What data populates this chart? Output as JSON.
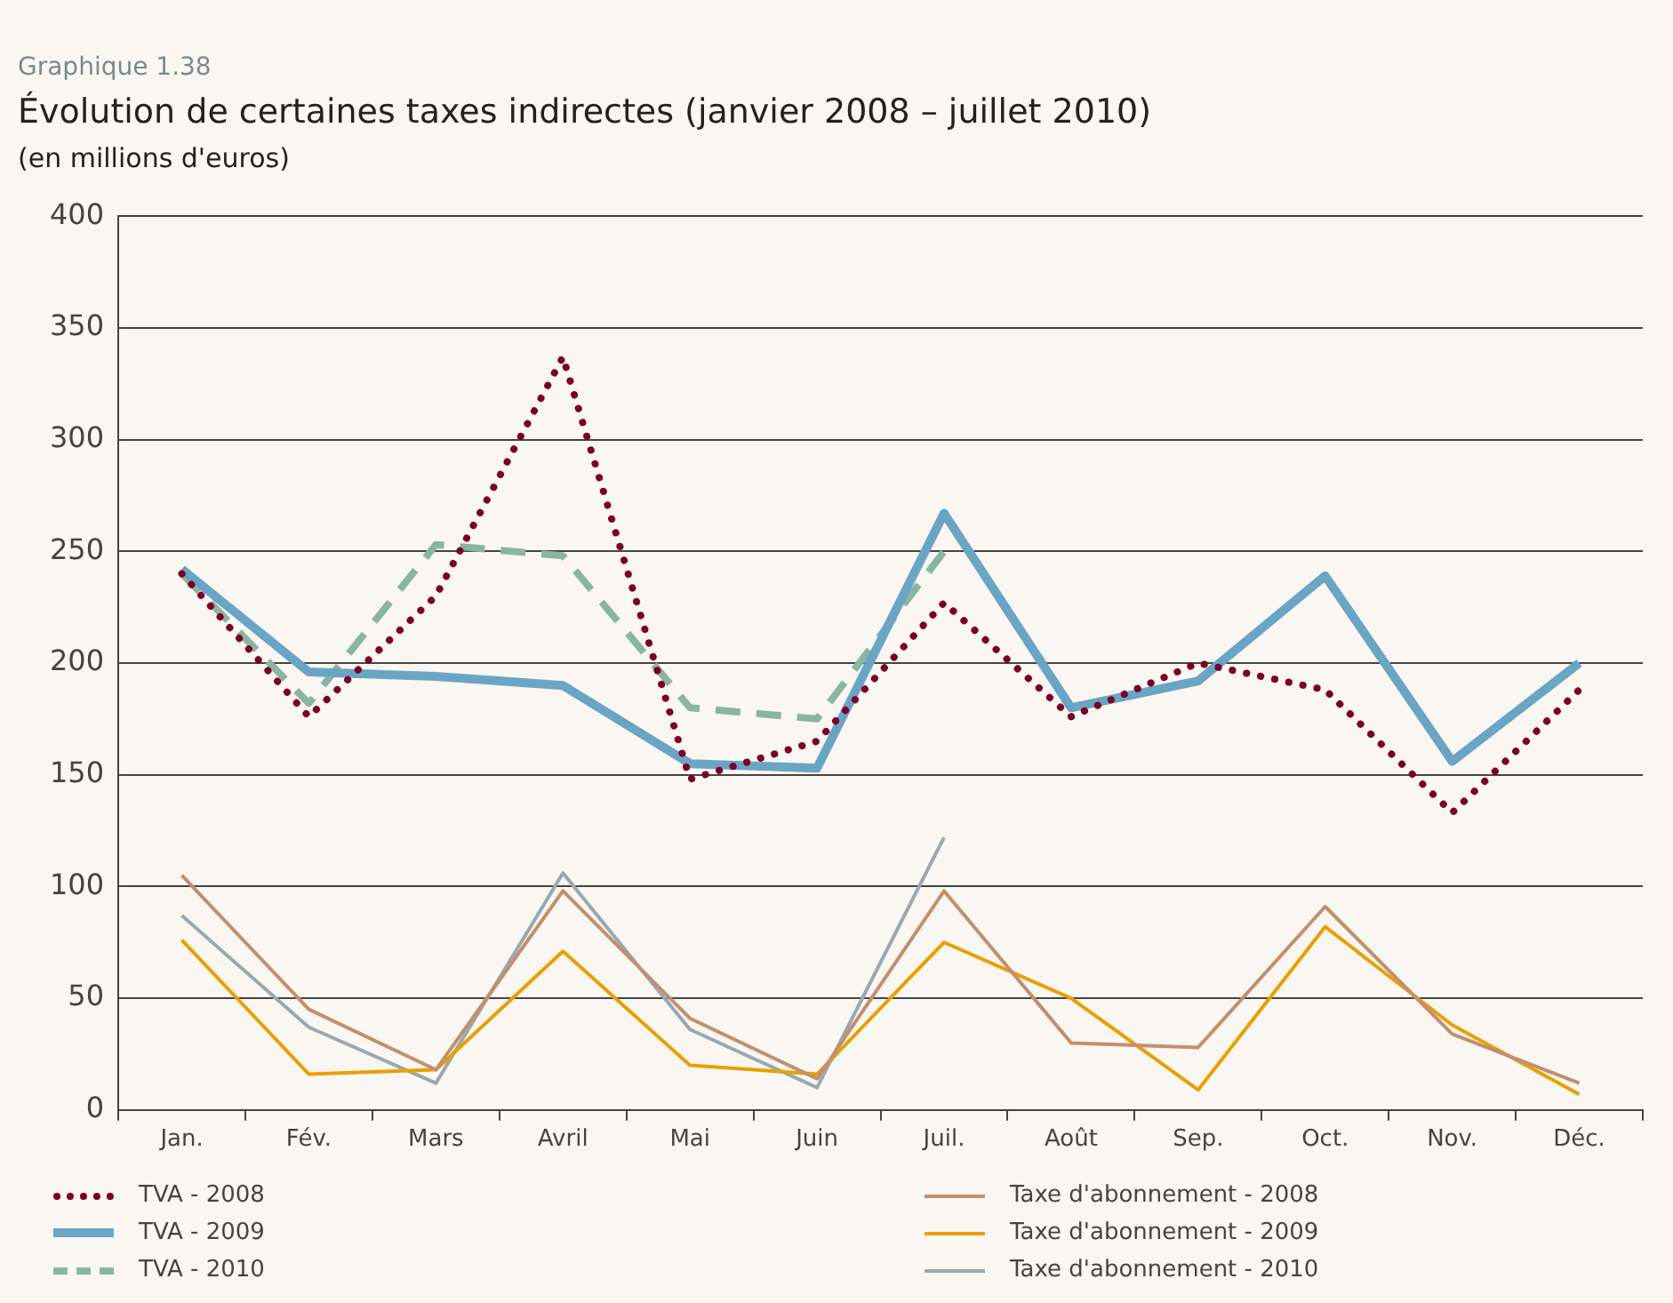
{
  "chart_data": {
    "type": "line",
    "annotations": [
      "Graphique 1.38"
    ],
    "title": "Évolution de certaines taxes indirectes (janvier 2008 – juillet 2010)",
    "subtitle": "(en millions d'euros)",
    "categories": [
      "Jan.",
      "Fév.",
      "Mars",
      "Avril",
      "Mai",
      "Juin",
      "Juil.",
      "Août",
      "Sep.",
      "Oct.",
      "Nov.",
      "Déc."
    ],
    "ylim": [
      0,
      400
    ],
    "yticks": [
      0,
      50,
      100,
      150,
      200,
      250,
      300,
      350,
      400
    ],
    "grid": "y",
    "legend": "bottom",
    "marker": "none",
    "series": [
      {
        "name": "TVA - 2008",
        "color": "#7a0026",
        "line_style": "dotted",
        "values": [
          240,
          176,
          230,
          337,
          148,
          165,
          227,
          176,
          200,
          188,
          133,
          188
        ]
      },
      {
        "name": "TVA - 2009",
        "color": "#6aa5c4",
        "line_style": "solid",
        "values": [
          242,
          196,
          194,
          190,
          155,
          153,
          267,
          180,
          192,
          239,
          156,
          200
        ]
      },
      {
        "name": "TVA - 2010",
        "color": "#8ab5a0",
        "line_style": "dashed",
        "values": [
          240,
          182,
          253,
          248,
          180,
          175,
          250,
          null,
          null,
          null,
          null,
          null
        ]
      },
      {
        "name": "Taxe d'abonnement - 2008",
        "color": "#c09070",
        "line_style": "solid",
        "values": [
          105,
          45,
          18,
          98,
          41,
          14,
          98,
          30,
          28,
          91,
          34,
          12
        ]
      },
      {
        "name": "Taxe d'abonnement - 2009",
        "color": "#e8a000",
        "line_style": "solid",
        "values": [
          76,
          16,
          18,
          71,
          20,
          16,
          75,
          50,
          9,
          82,
          38,
          7
        ]
      },
      {
        "name": "Taxe d'abonnement - 2010",
        "color": "#9aa8b0",
        "line_style": "solid",
        "values": [
          87,
          37,
          12,
          106,
          36,
          10,
          122,
          null,
          null,
          null,
          null,
          null
        ]
      }
    ]
  }
}
